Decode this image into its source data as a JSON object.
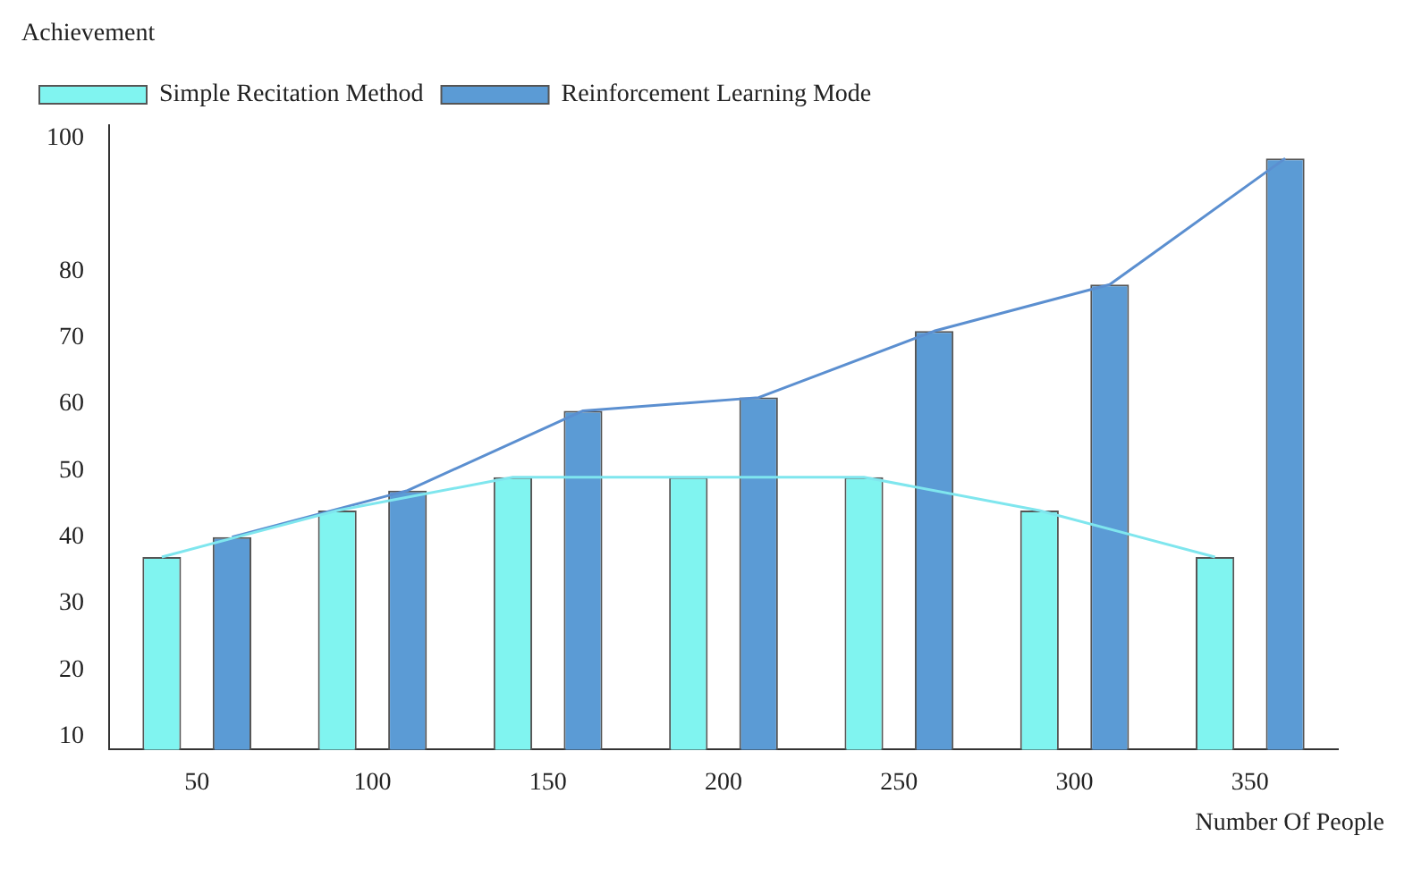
{
  "chart_data": {
    "type": "bar",
    "xlabel": "Number Of People",
    "ylabel": "Achievement",
    "categories": [
      "50",
      "100",
      "150",
      "200",
      "250",
      "300",
      "350"
    ],
    "series": [
      {
        "name": "Simple Recitation Method",
        "color": "#80f4f0",
        "values": [
          37,
          44,
          49,
          49,
          49,
          44,
          37
        ]
      },
      {
        "name": "Reinforcement Learning Mode",
        "color": "#5b9bd5",
        "values": [
          40,
          47,
          59,
          61,
          71,
          78,
          97
        ]
      },
      {
        "type": "line",
        "color": "#7fe6ee",
        "values": [
          37,
          44,
          49,
          49,
          49,
          44,
          37
        ]
      },
      {
        "type": "line",
        "color": "#5b8fd0",
        "values": [
          40,
          47,
          59,
          61,
          71,
          78,
          97
        ]
      }
    ],
    "ylim": [
      8,
      102
    ],
    "yticks": [
      10,
      20,
      30,
      40,
      50,
      60,
      70,
      80,
      100
    ],
    "grid": false,
    "legend": "top left",
    "marker": "none",
    "line_style": "solid"
  }
}
